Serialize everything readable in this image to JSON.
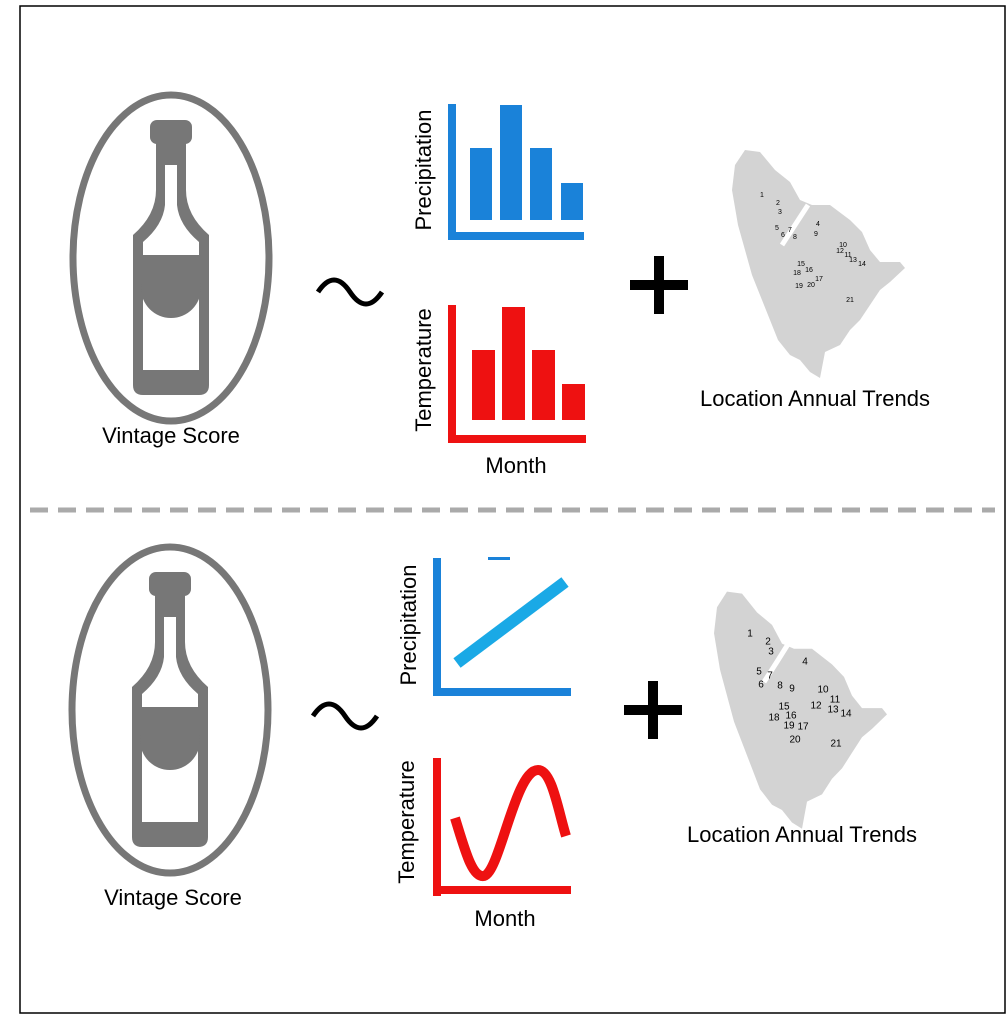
{
  "panels": [
    {
      "score_label": "Vintage Score",
      "precip_label": "Precipitation",
      "temp_label": "Temperature",
      "month_label": "Month",
      "map_label": "Location Annual Trends",
      "map_numbers": [
        1,
        2,
        3,
        4,
        5,
        6,
        7,
        8,
        9,
        10,
        11,
        12,
        13,
        14,
        15,
        16,
        17,
        18,
        19,
        20,
        21
      ]
    },
    {
      "score_label": "Vintage Score",
      "precip_label": "Precipitation",
      "temp_label": "Temperature",
      "month_label": "Month",
      "map_label": "Location Annual Trends",
      "map_numbers": [
        1,
        2,
        3,
        4,
        5,
        6,
        7,
        8,
        9,
        10,
        11,
        12,
        13,
        14,
        15,
        16,
        17,
        18,
        19,
        20,
        21
      ]
    }
  ]
}
